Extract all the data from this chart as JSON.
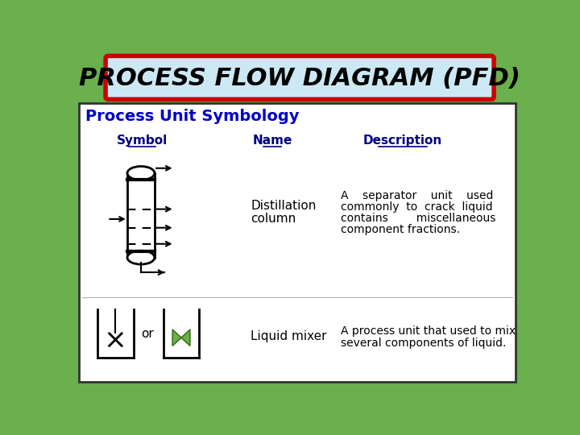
{
  "title": "PROCESS FLOW DIAGRAM (PFD)",
  "subtitle": "Process Unit Symbology",
  "col_symbol": "Symbol",
  "col_name": "Name",
  "col_desc": "Description",
  "row1_name_line1": "Distillation",
  "row1_name_line2": "column",
  "row1_desc_line1": "A    separator    unit    used",
  "row1_desc_line2": "commonly  to  crack  liquid",
  "row1_desc_line3": "contains        miscellaneous",
  "row1_desc_line4": "component fractions.",
  "row2_name": "Liquid mixer",
  "row2_desc_line1": "A process unit that used to mix",
  "row2_desc_line2": "several components of liquid.",
  "bg_outer": "#6ab04c",
  "bg_title_box": "#cce8f4",
  "title_border": "#cc0000",
  "subtitle_color": "#0000cc",
  "header_color": "#000080",
  "text_color": "#000000",
  "content_bg": "#ffffff",
  "content_border": "#333333",
  "symbol_color": "#000000",
  "butterfly_color": "#6ab04c",
  "butterfly_border": "#3a6a1c"
}
